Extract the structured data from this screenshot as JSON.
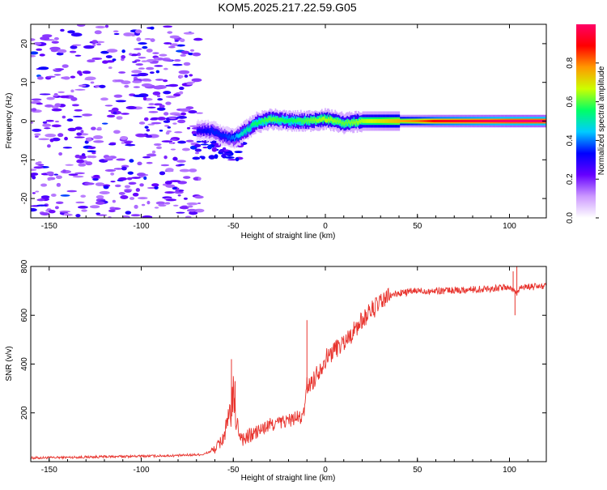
{
  "title": "KOM5.2025.217.22.59.G05",
  "chart_data": [
    {
      "type": "heatmap",
      "xlabel": "Height of straight line (km)",
      "ylabel": "Frequency (Hz)",
      "xlim": [
        -160,
        120
      ],
      "ylim": [
        -25,
        25
      ],
      "xticks": [
        -150,
        -100,
        -50,
        0,
        50,
        100
      ],
      "yticks": [
        -20,
        -10,
        0,
        10,
        20
      ],
      "colorbar": {
        "label": "Normalized spectral amplitude",
        "range": [
          0,
          1
        ],
        "ticks": [
          "0.0",
          "0.2",
          "0.4",
          "0.6",
          "0.8"
        ],
        "colors": [
          "#ffffff",
          "#cc99ff",
          "#6600ff",
          "#0000ff",
          "#00ccff",
          "#00ff66",
          "#ccff00",
          "#ff9900",
          "#ff0000",
          "#ff0066"
        ]
      },
      "ridge": [
        {
          "x": -70,
          "f": -2.5,
          "a": 0.3
        },
        {
          "x": -62,
          "f": -2.5,
          "a": 0.35
        },
        {
          "x": -55,
          "f": -4.0,
          "a": 0.35
        },
        {
          "x": -50,
          "f": -4.5,
          "a": 0.4
        },
        {
          "x": -45,
          "f": -3.0,
          "a": 0.5
        },
        {
          "x": -38,
          "f": -0.5,
          "a": 0.55
        },
        {
          "x": -30,
          "f": 0.5,
          "a": 0.6
        },
        {
          "x": -20,
          "f": 0.0,
          "a": 0.55
        },
        {
          "x": -10,
          "f": 0.0,
          "a": 0.6
        },
        {
          "x": 0,
          "f": 0.5,
          "a": 0.65
        },
        {
          "x": 10,
          "f": -0.5,
          "a": 0.6
        },
        {
          "x": 20,
          "f": 0.0,
          "a": 0.65
        },
        {
          "x": 30,
          "f": 0.0,
          "a": 0.7
        },
        {
          "x": 40,
          "f": 0.0,
          "a": 0.75
        },
        {
          "x": 50,
          "f": 0.0,
          "a": 0.8
        },
        {
          "x": 60,
          "f": 0.0,
          "a": 0.9
        },
        {
          "x": 80,
          "f": 0.0,
          "a": 0.95
        },
        {
          "x": 100,
          "f": 0.0,
          "a": 1.0
        },
        {
          "x": 120,
          "f": 0.0,
          "a": 1.0
        }
      ],
      "noise_xrange": [
        -160,
        -68
      ]
    },
    {
      "type": "line",
      "xlabel": "Height of straight line (km)",
      "ylabel": "SNR (v/v)",
      "xlim": [
        -160,
        120
      ],
      "ylim": [
        0,
        800
      ],
      "xticks": [
        -150,
        -100,
        -50,
        0,
        50,
        100
      ],
      "yticks": [
        200,
        400,
        600,
        800
      ],
      "color": "#e8342e",
      "series": [
        {
          "x": [
            -160,
            -120,
            -80,
            -66,
            -60,
            -56,
            -54,
            -52,
            -50,
            -48,
            -46,
            -44,
            -40,
            -35,
            -30,
            -25,
            -20,
            -15,
            -12,
            -10,
            -8,
            -6,
            -4,
            0,
            5,
            10,
            15,
            20,
            25,
            30,
            35,
            40,
            50,
            60,
            80,
            90,
            100,
            104,
            106,
            110,
            120
          ],
          "values": [
            15,
            20,
            25,
            30,
            50,
            90,
            130,
            180,
            260,
            150,
            110,
            90,
            110,
            130,
            150,
            160,
            170,
            180,
            180,
            310,
            320,
            340,
            370,
            420,
            460,
            490,
            530,
            580,
            620,
            650,
            680,
            690,
            700,
            700,
            705,
            710,
            715,
            690,
            720,
            715,
            720
          ]
        }
      ],
      "spikes": [
        {
          "x": -51,
          "y": 420
        },
        {
          "x": -49,
          "y": 330
        },
        {
          "x": -10,
          "y": 580
        },
        {
          "x": 102,
          "y": 780
        },
        {
          "x": 104,
          "y": 800
        },
        {
          "x": 103,
          "y": 600
        }
      ]
    }
  ]
}
